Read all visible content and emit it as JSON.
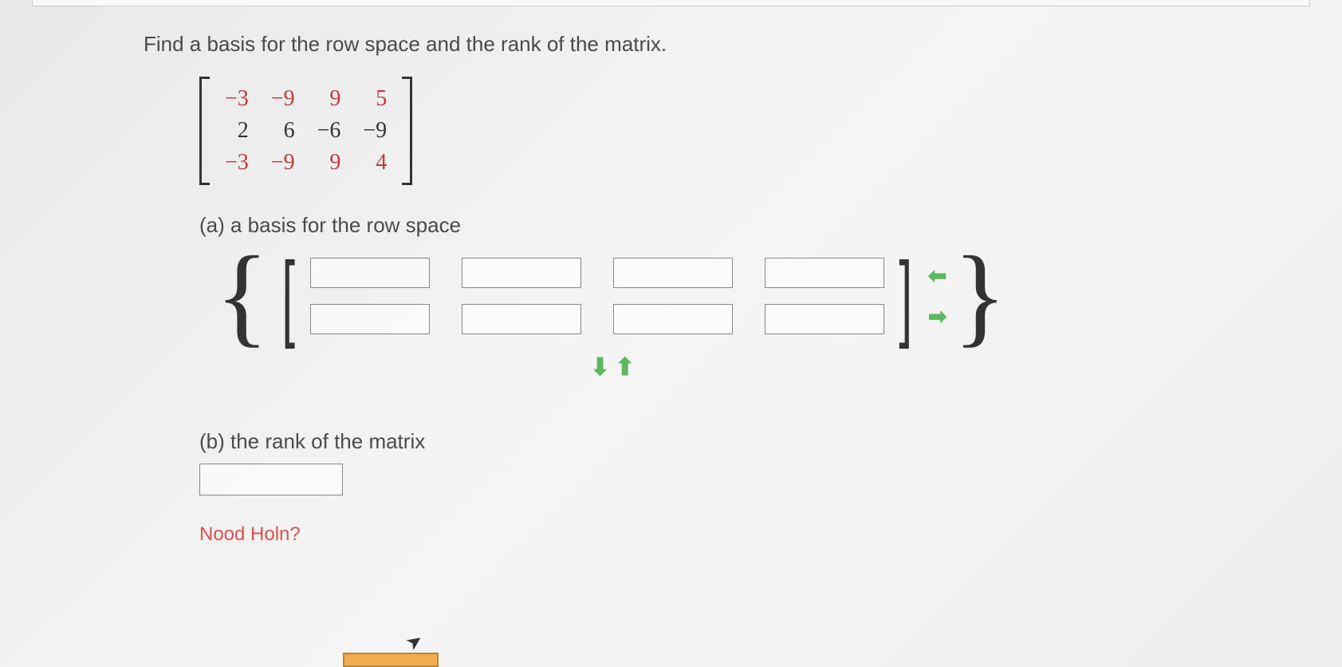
{
  "instruction": "Find a basis for the row space and the rank of the matrix.",
  "matrix": {
    "rows": [
      [
        "−3",
        "−9",
        "9",
        "5"
      ],
      [
        "2",
        "6",
        "−6",
        "−9"
      ],
      [
        "−3",
        "−9",
        "9",
        "4"
      ]
    ],
    "row_colors": [
      "#c23b3b",
      "#333333",
      "#c23b3b"
    ],
    "bracket_color": "#333333",
    "fontsize": 28
  },
  "part_a": {
    "label": "(a) a basis for the row space",
    "basis_rows": 2,
    "basis_cols": 4,
    "field_border_color": "#888888",
    "field_bg": "rgba(255,255,255,0.6)",
    "arrow_color": "#5cb85c"
  },
  "part_b": {
    "label": "(b) the rank of the matrix",
    "field_border_color": "#888888"
  },
  "help": {
    "partial_text": "Nood Holn?",
    "text_color": "#d9534f",
    "button_bg": "#f0ad4e",
    "button_border": "#b8863b"
  },
  "page_bg": "#ededed"
}
